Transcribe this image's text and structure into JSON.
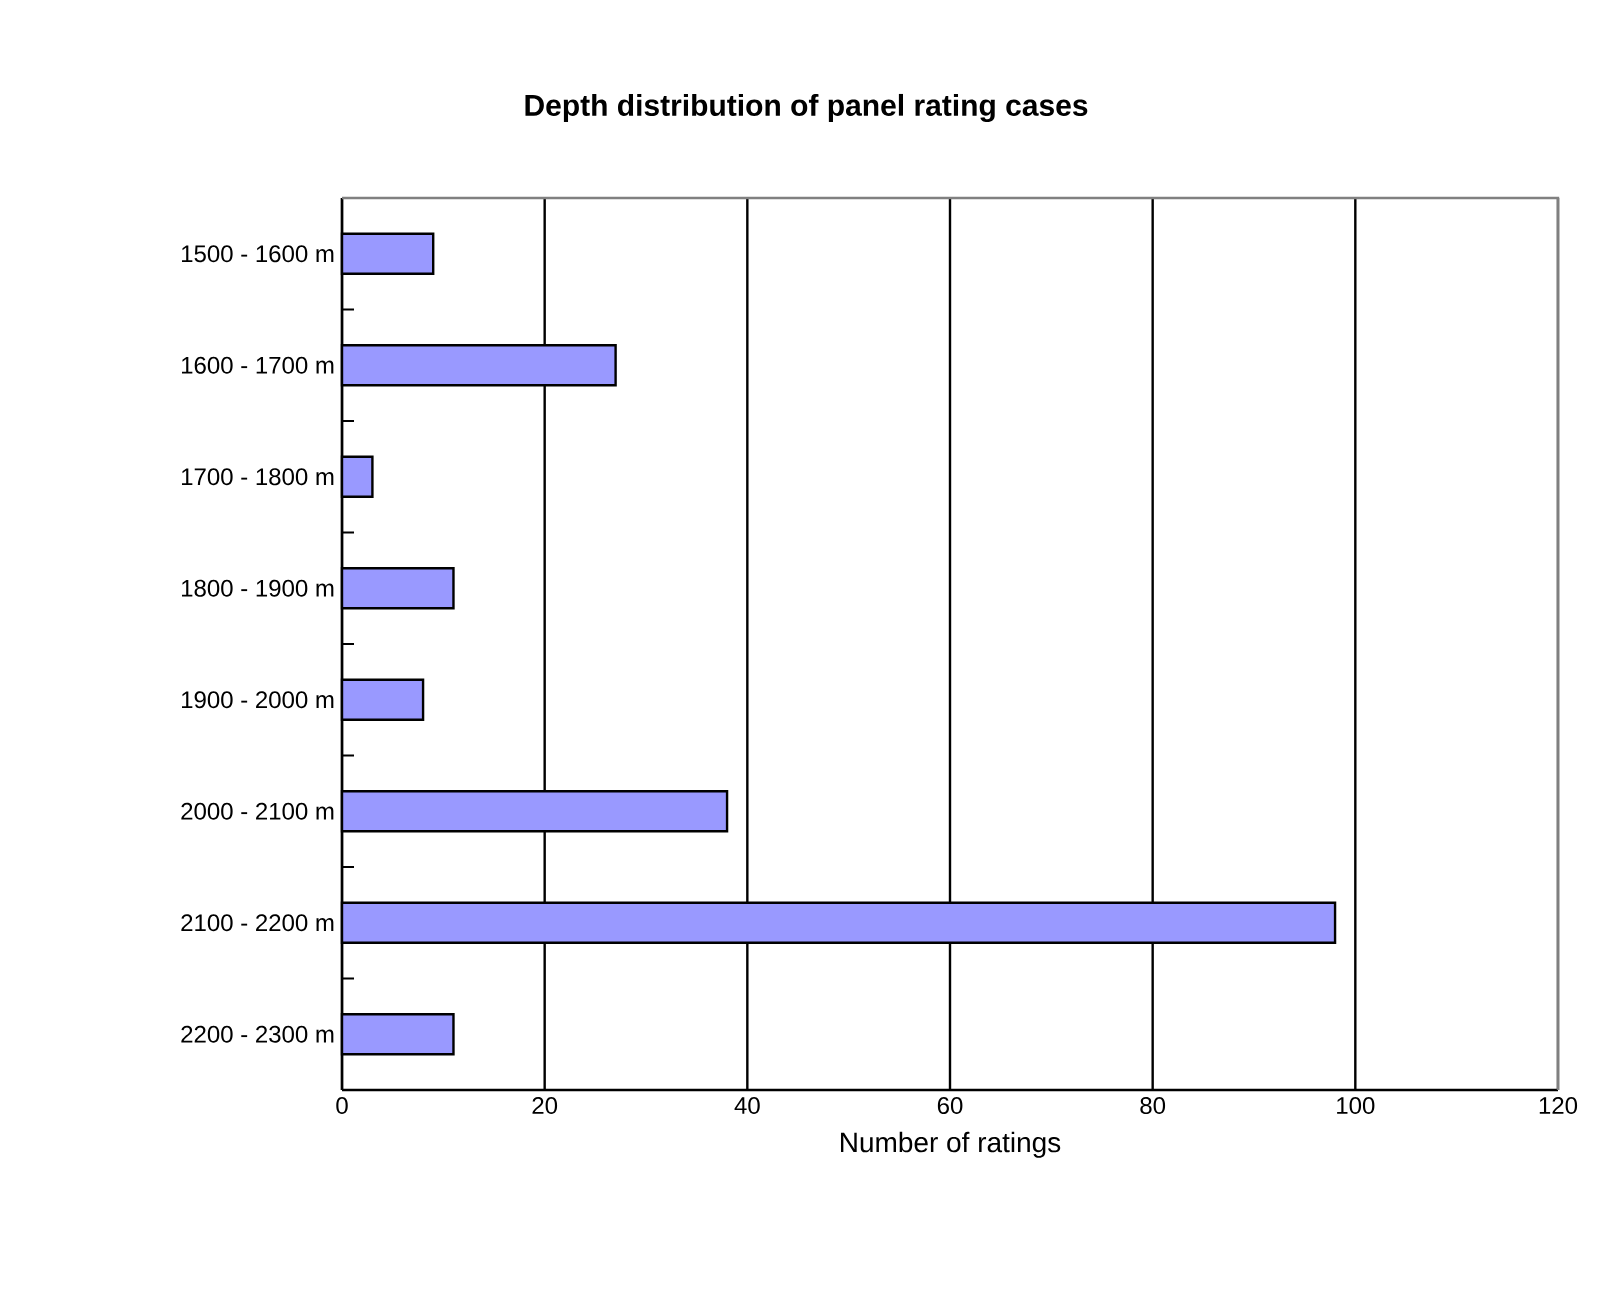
{
  "chart_data": {
    "type": "bar",
    "orientation": "horizontal",
    "title": "Depth distribution of panel rating cases",
    "xlabel": "Number of ratings",
    "categories": [
      "1500 - 1600 m",
      "1600 - 1700 m",
      "1700 - 1800 m",
      "1800 - 1900 m",
      "1900 - 2000 m",
      "2000 - 2100 m",
      "2100 - 2200 m",
      "2200 - 2300 m"
    ],
    "values": [
      9,
      27,
      3,
      11,
      8,
      38,
      98,
      11
    ],
    "color": "#9999ff",
    "xlim": [
      0,
      120
    ],
    "xticks": [
      0,
      20,
      40,
      60,
      80,
      100,
      120
    ],
    "grid": "x"
  }
}
